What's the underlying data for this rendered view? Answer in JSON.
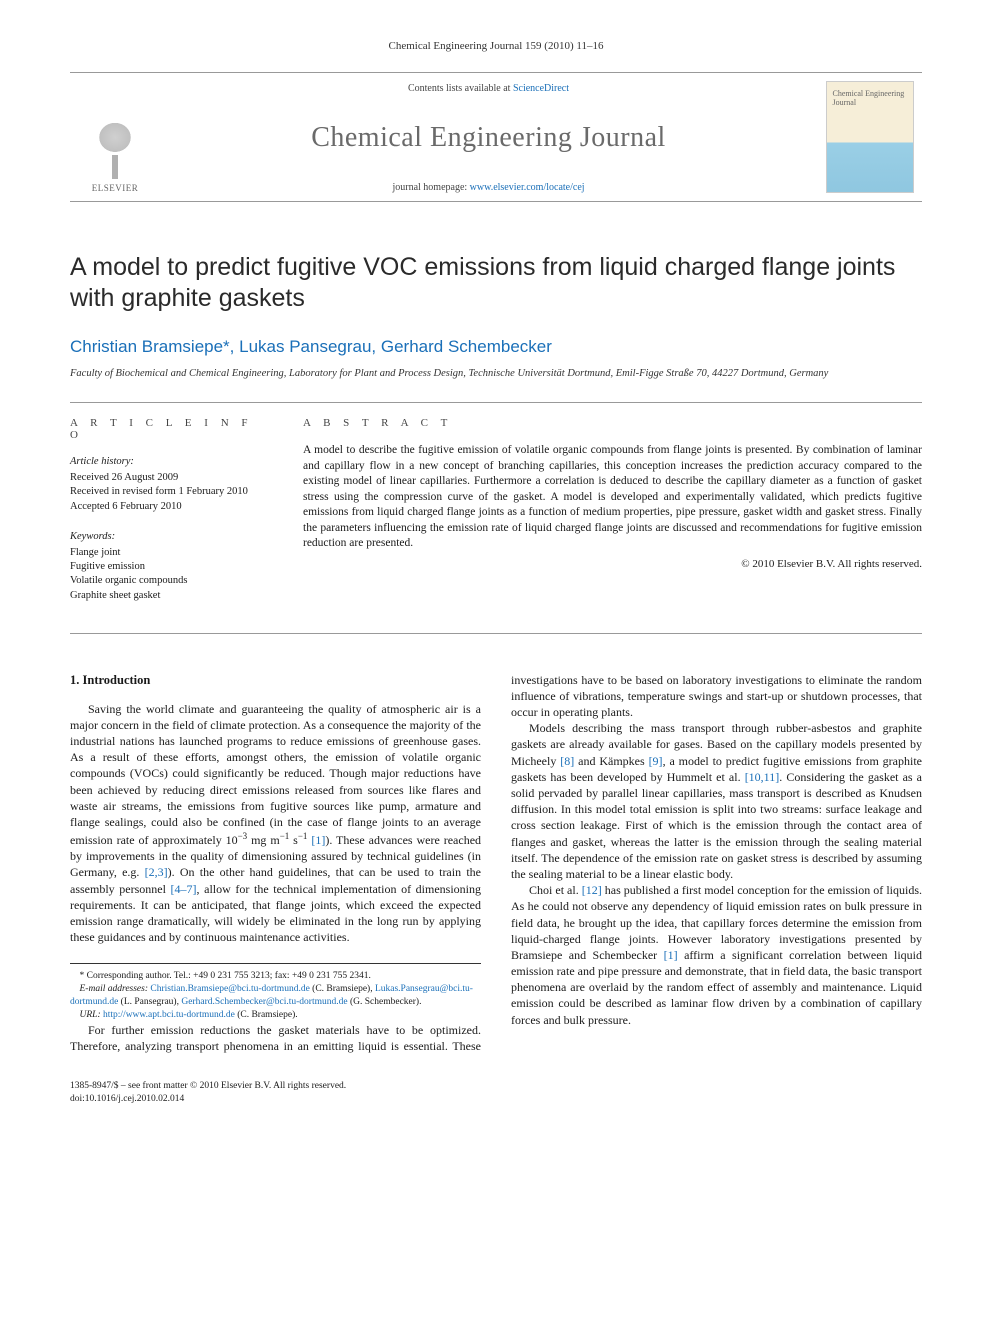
{
  "header": {
    "running_head": "Chemical Engineering Journal 159 (2010) 11–16"
  },
  "masthead": {
    "contents_prefix": "Contents lists available at ",
    "contents_link": "ScienceDirect",
    "journal_name": "Chemical Engineering Journal",
    "homepage_prefix": "journal homepage: ",
    "homepage_url": "www.elsevier.com/locate/cej",
    "publisher_label": "ELSEVIER",
    "cover_text": "Chemical\nEngineering\nJournal"
  },
  "article": {
    "title": "A model to predict fugitive VOC emissions from liquid charged flange joints with graphite gaskets",
    "authors_html": "Christian Bramsiepe*, Lukas Pansegrau, Gerhard Schembecker",
    "affiliation": "Faculty of Biochemical and Chemical Engineering, Laboratory for Plant and Process Design, Technische Universität Dortmund, Emil-Figge Straße 70, 44227 Dortmund, Germany"
  },
  "info": {
    "heading": "A R T I C L E   I N F O",
    "history_label": "Article history:",
    "history": [
      "Received 26 August 2009",
      "Received in revised form 1 February 2010",
      "Accepted 6 February 2010"
    ],
    "keywords_label": "Keywords:",
    "keywords": [
      "Flange joint",
      "Fugitive emission",
      "Volatile organic compounds",
      "Graphite sheet gasket"
    ]
  },
  "abstract": {
    "heading": "A B S T R A C T",
    "text": "A model to describe the fugitive emission of volatile organic compounds from flange joints is presented. By combination of laminar and capillary flow in a new concept of branching capillaries, this conception increases the prediction accuracy compared to the existing model of linear capillaries. Furthermore a correlation is deduced to describe the capillary diameter as a function of gasket stress using the compression curve of the gasket. A model is developed and experimentally validated, which predicts fugitive emissions from liquid charged flange joints as a function of medium properties, pipe pressure, gasket width and gasket stress. Finally the parameters influencing the emission rate of liquid charged flange joints are discussed and recommendations for fugitive emission reduction are presented.",
    "copyright": "© 2010 Elsevier B.V. All rights reserved."
  },
  "body": {
    "section1_heading": "1. Introduction",
    "p1": "Saving the world climate and guaranteeing the quality of atmospheric air is a major concern in the field of climate protection. As a consequence the majority of the industrial nations has launched programs to reduce emissions of greenhouse gases. As a result of these efforts, amongst others, the emission of volatile organic compounds (VOCs) could significantly be reduced. Though major reductions have been achieved by reducing direct emissions released from sources like flares and waste air streams, the emissions from fugitive sources like pump, armature and flange sealings, could also be confined (in the case of flange joints to an average emission rate of approximately 10⁻³ mg m⁻¹ s⁻¹ [1]). These advances were reached by improvements in the quality of dimensioning assured by technical guidelines (in Germany, e.g. [2,3]). On the other hand guidelines, that can be used to train the assembly personnel [4–7], allow for the technical implementation of dimensioning requirements. It can be anticipated, that flange joints, which exceed the expected emission range dramatically, will widely be eliminated in the long run by applying these guidances and by continuous maintenance activities.",
    "p2": "For further emission reductions the gasket materials have to be optimized. Therefore, analyzing transport phenomena in an emitting liquid is essential. These investigations have to be based on laboratory investigations to eliminate the random influence of vibrations, temperature swings and start-up or shutdown processes, that occur in operating plants.",
    "p3": "Models describing the mass transport through rubber-asbestos and graphite gaskets are already available for gases. Based on the capillary models presented by Micheely [8] and Kämpkes [9], a model to predict fugitive emissions from graphite gaskets has been developed by Hummelt et al. [10,11]. Considering the gasket as a solid pervaded by parallel linear capillaries, mass transport is described as Knudsen diffusion. In this model total emission is split into two streams: surface leakage and cross section leakage. First of which is the emission through the contact area of flanges and gasket, whereas the latter is the emission through the sealing material itself. The dependence of the emission rate on gasket stress is described by assuming the sealing material to be a linear elastic body.",
    "p4": "Choi et al. [12] has published a first model conception for the emission of liquids. As he could not observe any dependency of liquid emission rates on bulk pressure in field data, he brought up the idea, that capillary forces determine the emission from liquid-charged flange joints. However laboratory investigations presented by Bramsiepe and Schembecker [1] affirm a significant correlation between liquid emission rate and pipe pressure and demonstrate, that in field data, the basic transport phenomena are overlaid by the random effect of assembly and maintenance. Liquid emission could be described as laminar flow driven by a combination of capillary forces and bulk pressure."
  },
  "footnotes": {
    "corresponding": "* Corresponding author. Tel.: +49 0 231 755 3213; fax: +49 0 231 755 2341.",
    "email_label": "E-mail addresses:",
    "email1": "Christian.Bramsiepe@bci.tu-dortmund.de",
    "email1_who": " (C. Bramsiepe),",
    "email2": "Lukas.Pansegrau@bci.tu-dortmund.de",
    "email2_who": " (L. Pansegrau),",
    "email3": "Gerhard.Schembecker@bci.tu-dortmund.de",
    "email3_who": " (G. Schembecker).",
    "url_label": "URL: ",
    "url": "http://www.apt.bci.tu-dortmund.de",
    "url_who": " (C. Bramsiepe)."
  },
  "footer": {
    "line1": "1385-8947/$ – see front matter © 2010 Elsevier B.V. All rights reserved.",
    "line2": "doi:10.1016/j.cej.2010.02.014"
  },
  "refs": {
    "r1": "[1]",
    "r23": "[2,3]",
    "r47": "[4–7]",
    "r8": "[8]",
    "r9": "[9]",
    "r1011": "[10,11]",
    "r12": "[12]"
  },
  "colors": {
    "link": "#1a6fb8",
    "text": "#1a1a1a",
    "rule": "#999999"
  }
}
